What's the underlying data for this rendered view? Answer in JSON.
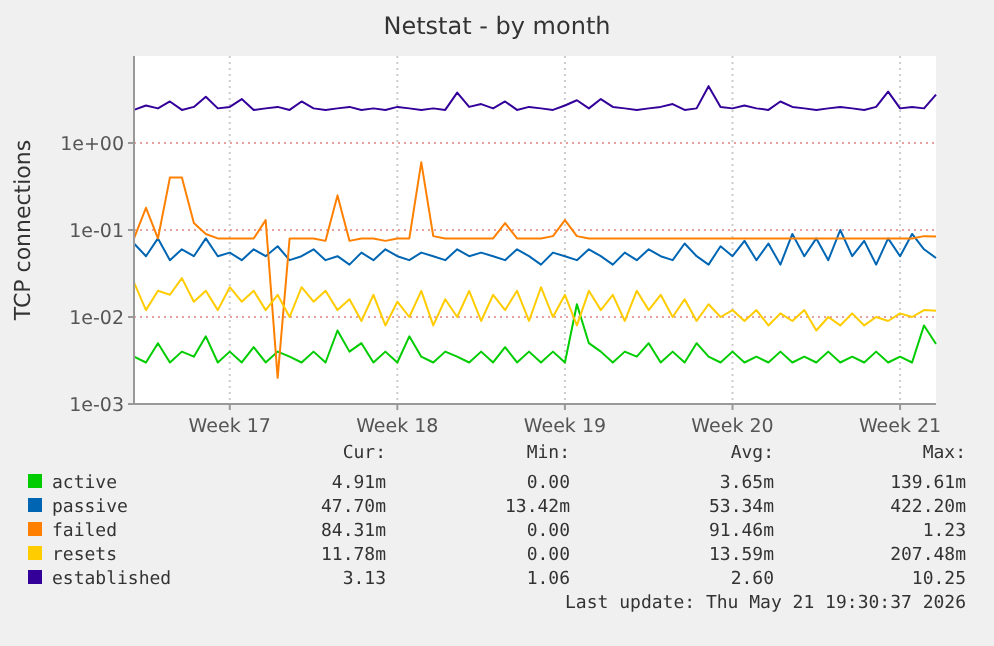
{
  "chart_data": {
    "type": "line",
    "title": "Netstat - by month",
    "ylabel": "TCP connections",
    "log": "y",
    "grid": true,
    "legend": "bottom",
    "marker": "none",
    "line_style": "solid",
    "x": [
      "2026-04-19T12:00",
      "2026-04-20T00:00",
      "2026-04-20T12:00",
      "2026-04-21T00:00",
      "2026-04-21T12:00",
      "2026-04-22T00:00",
      "2026-04-22T12:00",
      "2026-04-23T00:00",
      "2026-04-23T12:00",
      "2026-04-24T00:00",
      "2026-04-24T12:00",
      "2026-04-25T00:00",
      "2026-04-25T12:00",
      "2026-04-26T00:00",
      "2026-04-26T12:00",
      "2026-04-27T00:00",
      "2026-04-27T12:00",
      "2026-04-28T00:00",
      "2026-04-28T12:00",
      "2026-04-29T00:00",
      "2026-04-29T12:00",
      "2026-04-30T00:00",
      "2026-04-30T12:00",
      "2026-05-01T00:00",
      "2026-05-01T12:00",
      "2026-05-02T00:00",
      "2026-05-02T12:00",
      "2026-05-03T00:00",
      "2026-05-03T12:00",
      "2026-05-04T00:00",
      "2026-05-04T12:00",
      "2026-05-05T00:00",
      "2026-05-05T12:00",
      "2026-05-06T00:00",
      "2026-05-06T12:00",
      "2026-05-07T00:00",
      "2026-05-07T12:00",
      "2026-05-08T00:00",
      "2026-05-08T12:00",
      "2026-05-09T00:00",
      "2026-05-09T12:00",
      "2026-05-10T00:00",
      "2026-05-10T12:00",
      "2026-05-11T00:00",
      "2026-05-11T12:00",
      "2026-05-12T00:00",
      "2026-05-12T12:00",
      "2026-05-13T00:00",
      "2026-05-13T12:00",
      "2026-05-14T00:00",
      "2026-05-14T12:00",
      "2026-05-15T00:00",
      "2026-05-15T12:00",
      "2026-05-16T00:00",
      "2026-05-16T12:00",
      "2026-05-17T00:00",
      "2026-05-17T12:00",
      "2026-05-18T00:00",
      "2026-05-18T12:00",
      "2026-05-19T00:00",
      "2026-05-19T12:00",
      "2026-05-20T00:00",
      "2026-05-20T12:00",
      "2026-05-21T00:00",
      "2026-05-21T12:00",
      "2026-05-22T00:00",
      "2026-05-22T12:00",
      "2026-05-23T00:00"
    ],
    "xlim": [
      "2026-04-19T12:00",
      "2026-05-23T00:00"
    ],
    "xticks": [
      {
        "value": "2026-04-23T12:00",
        "label": "Week 17"
      },
      {
        "value": "2026-04-30T12:00",
        "label": "Week 18"
      },
      {
        "value": "2026-05-07T12:00",
        "label": "Week 19"
      },
      {
        "value": "2026-05-14T12:00",
        "label": "Week 20"
      },
      {
        "value": "2026-05-21T12:00",
        "label": "Week 21"
      }
    ],
    "ylim": [
      0.001,
      10
    ],
    "yticks": [
      {
        "value": 0.001,
        "label": "1e-03"
      },
      {
        "value": 0.01,
        "label": "1e-02"
      },
      {
        "value": 0.1,
        "label": "1e-01"
      },
      {
        "value": 1,
        "label": "1e+00"
      }
    ],
    "series": [
      {
        "name": "active",
        "color": "#00cc00",
        "values": [
          0.0035,
          0.003,
          0.005,
          0.003,
          0.004,
          0.0035,
          0.006,
          0.003,
          0.004,
          0.003,
          0.0045,
          0.003,
          0.004,
          0.0035,
          0.003,
          0.004,
          0.003,
          0.007,
          0.004,
          0.005,
          0.003,
          0.004,
          0.003,
          0.006,
          0.0035,
          0.003,
          0.004,
          0.0035,
          0.003,
          0.004,
          0.003,
          0.0045,
          0.003,
          0.004,
          0.003,
          0.004,
          0.003,
          0.014,
          0.005,
          0.004,
          0.003,
          0.004,
          0.0035,
          0.005,
          0.003,
          0.004,
          0.003,
          0.005,
          0.0035,
          0.003,
          0.004,
          0.003,
          0.0035,
          0.003,
          0.004,
          0.003,
          0.0035,
          0.003,
          0.004,
          0.003,
          0.0035,
          0.003,
          0.004,
          0.003,
          0.0035,
          0.003,
          0.008,
          0.0049
        ]
      },
      {
        "name": "passive",
        "color": "#0066b3",
        "values": [
          0.07,
          0.05,
          0.08,
          0.045,
          0.06,
          0.05,
          0.08,
          0.05,
          0.055,
          0.045,
          0.06,
          0.05,
          0.065,
          0.045,
          0.05,
          0.06,
          0.045,
          0.05,
          0.04,
          0.055,
          0.045,
          0.06,
          0.05,
          0.045,
          0.055,
          0.05,
          0.045,
          0.06,
          0.05,
          0.055,
          0.05,
          0.045,
          0.06,
          0.05,
          0.04,
          0.055,
          0.05,
          0.045,
          0.06,
          0.05,
          0.04,
          0.055,
          0.045,
          0.06,
          0.05,
          0.045,
          0.07,
          0.05,
          0.04,
          0.065,
          0.05,
          0.075,
          0.045,
          0.07,
          0.04,
          0.09,
          0.05,
          0.08,
          0.045,
          0.1,
          0.05,
          0.075,
          0.04,
          0.08,
          0.05,
          0.09,
          0.06,
          0.0477
        ]
      },
      {
        "name": "failed",
        "color": "#ff8000",
        "values": [
          0.08,
          0.18,
          0.08,
          0.4,
          0.4,
          0.12,
          0.09,
          0.08,
          0.08,
          0.08,
          0.08,
          0.13,
          0.002,
          0.08,
          0.08,
          0.08,
          0.075,
          0.25,
          0.075,
          0.08,
          0.08,
          0.075,
          0.08,
          0.08,
          0.6,
          0.085,
          0.08,
          0.08,
          0.08,
          0.08,
          0.08,
          0.12,
          0.08,
          0.08,
          0.08,
          0.085,
          0.13,
          0.085,
          0.08,
          0.08,
          0.08,
          0.08,
          0.08,
          0.08,
          0.08,
          0.08,
          0.08,
          0.08,
          0.08,
          0.08,
          0.08,
          0.08,
          0.08,
          0.08,
          0.08,
          0.08,
          0.08,
          0.08,
          0.08,
          0.08,
          0.08,
          0.08,
          0.08,
          0.08,
          0.08,
          0.08,
          0.085,
          0.084
        ]
      },
      {
        "name": "resets",
        "color": "#ffcc00",
        "values": [
          0.025,
          0.012,
          0.02,
          0.018,
          0.028,
          0.015,
          0.02,
          0.012,
          0.022,
          0.015,
          0.02,
          0.012,
          0.018,
          0.01,
          0.022,
          0.015,
          0.02,
          0.012,
          0.016,
          0.009,
          0.018,
          0.008,
          0.015,
          0.01,
          0.02,
          0.008,
          0.016,
          0.01,
          0.02,
          0.009,
          0.018,
          0.012,
          0.02,
          0.009,
          0.022,
          0.01,
          0.018,
          0.008,
          0.02,
          0.012,
          0.018,
          0.009,
          0.02,
          0.012,
          0.018,
          0.01,
          0.016,
          0.009,
          0.014,
          0.01,
          0.012,
          0.009,
          0.012,
          0.008,
          0.011,
          0.009,
          0.012,
          0.007,
          0.01,
          0.008,
          0.011,
          0.008,
          0.01,
          0.009,
          0.011,
          0.01,
          0.012,
          0.0118
        ]
      },
      {
        "name": "established",
        "color": "#330099",
        "values": [
          2.4,
          2.7,
          2.5,
          3.0,
          2.4,
          2.6,
          3.4,
          2.5,
          2.6,
          3.2,
          2.4,
          2.5,
          2.6,
          2.4,
          3.0,
          2.5,
          2.4,
          2.5,
          2.6,
          2.4,
          2.5,
          2.4,
          2.6,
          2.5,
          2.4,
          2.5,
          2.4,
          3.8,
          2.6,
          2.8,
          2.5,
          3.0,
          2.4,
          2.6,
          2.5,
          2.4,
          2.7,
          3.1,
          2.5,
          3.2,
          2.6,
          2.5,
          2.4,
          2.5,
          2.6,
          2.8,
          2.4,
          2.5,
          4.5,
          2.6,
          2.5,
          2.7,
          2.5,
          2.4,
          3.0,
          2.6,
          2.5,
          2.4,
          2.5,
          2.6,
          2.5,
          2.4,
          2.6,
          3.9,
          2.5,
          2.6,
          2.5,
          3.6
        ]
      }
    ],
    "annotations": [
      "Cur:",
      "Min:",
      "Avg:",
      "Max:",
      "4.91m",
      "0.00",
      "3.65m",
      "139.61m",
      "47.70m",
      "13.42m",
      "53.34m",
      "422.20m",
      "84.31m",
      "0.00",
      "91.46m",
      "1.23",
      "11.78m",
      "0.00",
      "13.59m",
      "207.48m",
      "3.13",
      "1.06",
      "2.60",
      "10.25",
      "Last update: Thu May 21 19:30:37 2026"
    ]
  }
}
